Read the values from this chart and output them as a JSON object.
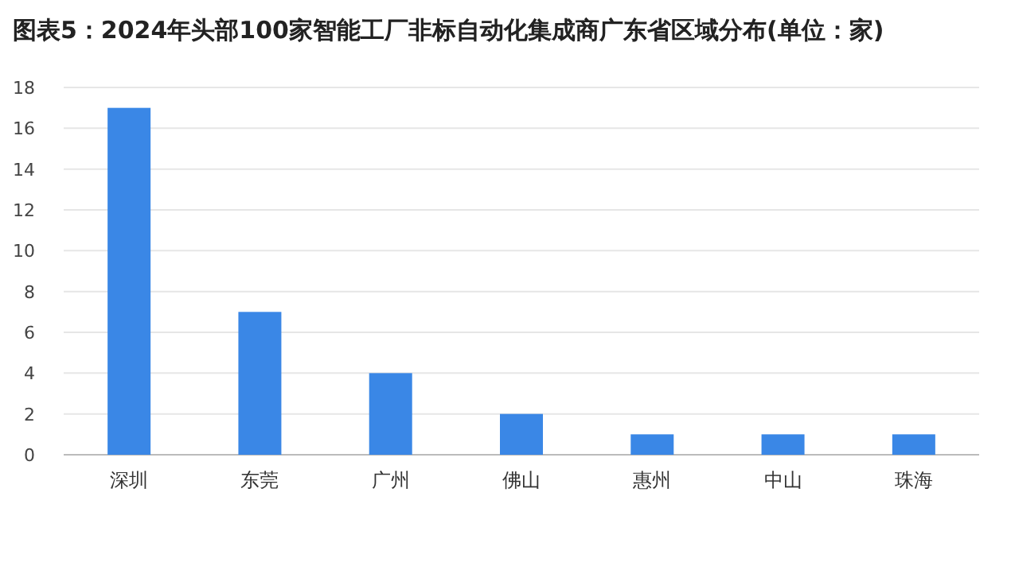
{
  "chart_data": {
    "type": "bar",
    "title": "图表5：2024年头部100家智能工厂非标自动化集成商广东省区域分布(单位：家)",
    "categories": [
      "深圳",
      "东莞",
      "广州",
      "佛山",
      "惠州",
      "中山",
      "珠海"
    ],
    "values": [
      17,
      7,
      4,
      2,
      1,
      1,
      1
    ],
    "color": "#3a87e6",
    "ylim": [
      0,
      18
    ],
    "yticks": [
      0,
      2,
      4,
      6,
      8,
      10,
      12,
      14,
      16,
      18
    ],
    "grid": "y"
  }
}
